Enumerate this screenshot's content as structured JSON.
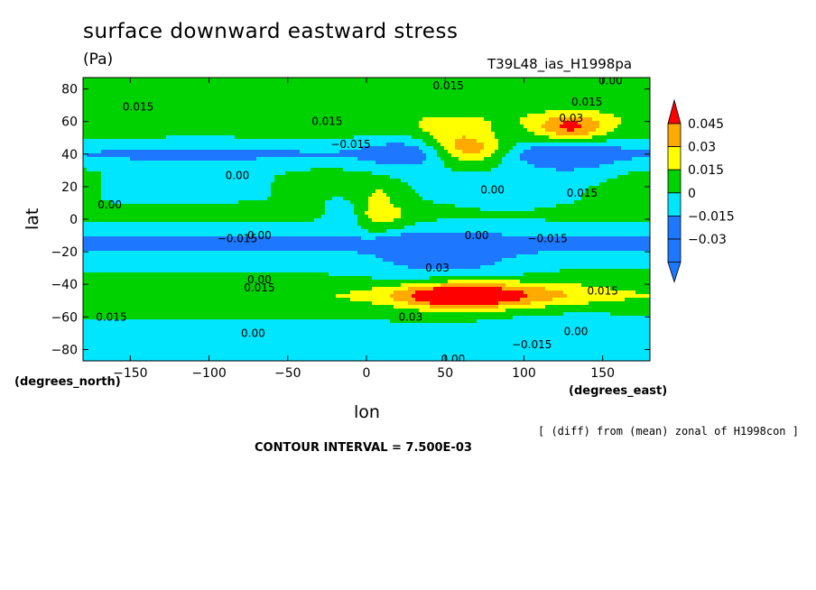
{
  "chart_data": {
    "type": "heatmap",
    "title": "surface downward eastward stress",
    "units": "(Pa)",
    "experiment": "T39L48_ias_H1998pa",
    "xlabel": "lon",
    "ylabel": "lat",
    "x_unit": "(degrees_east)",
    "y_unit": "(degrees_north)",
    "xlim": [
      -180,
      180
    ],
    "ylim": [
      -87,
      87
    ],
    "x_ticks": [
      -150,
      -100,
      -50,
      0,
      50,
      100,
      150
    ],
    "x_tick_labels": [
      "−150",
      "−100",
      "−50",
      "0",
      "50",
      "100",
      "150"
    ],
    "y_ticks": [
      -80,
      -60,
      -40,
      -20,
      0,
      20,
      40,
      60,
      80
    ],
    "y_tick_labels": [
      "−80",
      "−60",
      "−40",
      "−20",
      "0",
      "20",
      "40",
      "60",
      "80"
    ],
    "colorbar": {
      "levels": [
        -0.03,
        -0.015,
        0,
        0.015,
        0.03,
        0.045
      ],
      "labels": [
        "−0.03",
        "−0.015",
        "0",
        "0.015",
        "0.03",
        "0.045"
      ],
      "colors": [
        "#1e78ff",
        "#00e6ff",
        "#00d200",
        "#ffff00",
        "#ffaa00",
        "#ff0000"
      ]
    },
    "contour_interval": "CONTOUR INTERVAL = 7.500E-03",
    "note": "[ (diff) from (mean) zonal of H1998con ]",
    "contour_labels": [
      {
        "text": "0.015",
        "lon": -145,
        "lat": 69
      },
      {
        "text": "0.015",
        "lon": -25,
        "lat": 60
      },
      {
        "text": "−0.015",
        "lon": -10,
        "lat": 46
      },
      {
        "text": "0.00",
        "lon": -82,
        "lat": 27
      },
      {
        "text": "0.00",
        "lon": -163,
        "lat": 9
      },
      {
        "text": "0.015",
        "lon": 52,
        "lat": 82
      },
      {
        "text": "0.00",
        "lon": 155,
        "lat": 85
      },
      {
        "text": "0.015",
        "lon": 140,
        "lat": 72
      },
      {
        "text": "0.03",
        "lon": 130,
        "lat": 62
      },
      {
        "text": "0.015",
        "lon": 137,
        "lat": 16
      },
      {
        "text": "0.00",
        "lon": 80,
        "lat": 18
      },
      {
        "text": "−0.015",
        "lon": -82,
        "lat": -12
      },
      {
        "text": "0.00",
        "lon": -68,
        "lat": -10
      },
      {
        "text": "0.00",
        "lon": 70,
        "lat": -10
      },
      {
        "text": "−0.015",
        "lon": 115,
        "lat": -12
      },
      {
        "text": "0.00",
        "lon": -68,
        "lat": -37
      },
      {
        "text": "0.015",
        "lon": -68,
        "lat": -42
      },
      {
        "text": "0.015",
        "lon": -162,
        "lat": -60
      },
      {
        "text": "0.00",
        "lon": -72,
        "lat": -70
      },
      {
        "text": "0.03",
        "lon": 28,
        "lat": -60
      },
      {
        "text": "0.015",
        "lon": 150,
        "lat": -44
      },
      {
        "text": "0.00",
        "lon": 133,
        "lat": -69
      },
      {
        "text": "−0.015",
        "lon": 105,
        "lat": -77
      },
      {
        "text": "0.00",
        "lon": 55,
        "lat": -86
      },
      {
        "text": "0.03",
        "lon": 45,
        "lat": -30
      }
    ]
  }
}
